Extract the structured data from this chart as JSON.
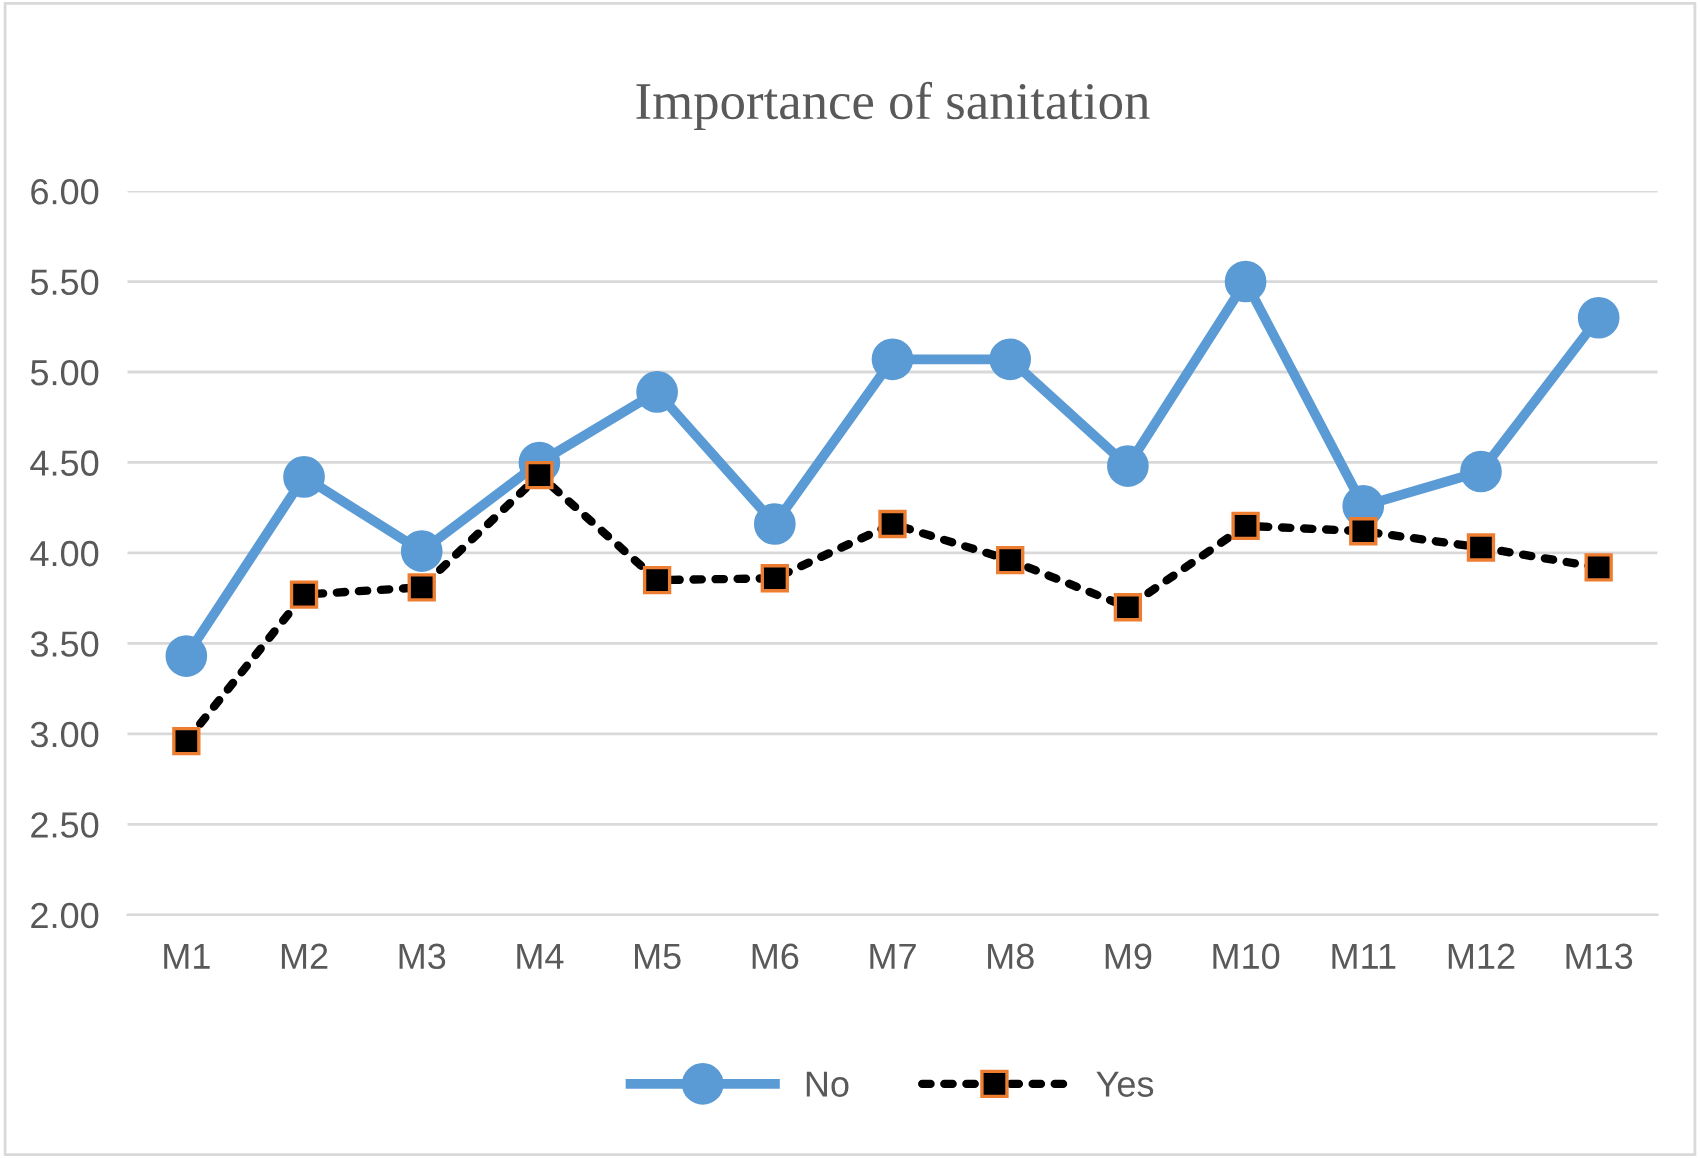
{
  "chart_data": {
    "type": "line",
    "title": "Importance of sanitation",
    "categories": [
      "M1",
      "M2",
      "M3",
      "M4",
      "M5",
      "M6",
      "M7",
      "M8",
      "M9",
      "M10",
      "M11",
      "M12",
      "M13"
    ],
    "series": [
      {
        "name": "No",
        "color": "#5b9bd5",
        "marker": "circle",
        "line_style": "solid",
        "values": [
          3.43,
          4.42,
          4.01,
          4.5,
          4.89,
          4.16,
          5.07,
          5.07,
          4.48,
          5.5,
          4.26,
          4.45,
          5.3
        ]
      },
      {
        "name": "Yes",
        "color": "#000000",
        "marker": "square",
        "line_style": "dotted",
        "values": [
          2.96,
          3.77,
          3.81,
          4.43,
          3.85,
          3.86,
          4.16,
          3.96,
          3.7,
          4.15,
          4.12,
          4.03,
          3.92
        ]
      }
    ],
    "ylim": [
      2.0,
      6.0
    ],
    "yticks": [
      {
        "value": 2,
        "label": "2.00"
      },
      {
        "value": 2.5,
        "label": "2.50"
      },
      {
        "value": 3,
        "label": "3.00"
      },
      {
        "value": 3.5,
        "label": "3.50"
      },
      {
        "value": 4,
        "label": "4.00"
      },
      {
        "value": 4.5,
        "label": "4.50"
      },
      {
        "value": 5,
        "label": "5.00"
      },
      {
        "value": 5.5,
        "label": "5.50"
      },
      {
        "value": 6,
        "label": "6.00"
      }
    ],
    "grid": "y",
    "legend": "bottom"
  }
}
